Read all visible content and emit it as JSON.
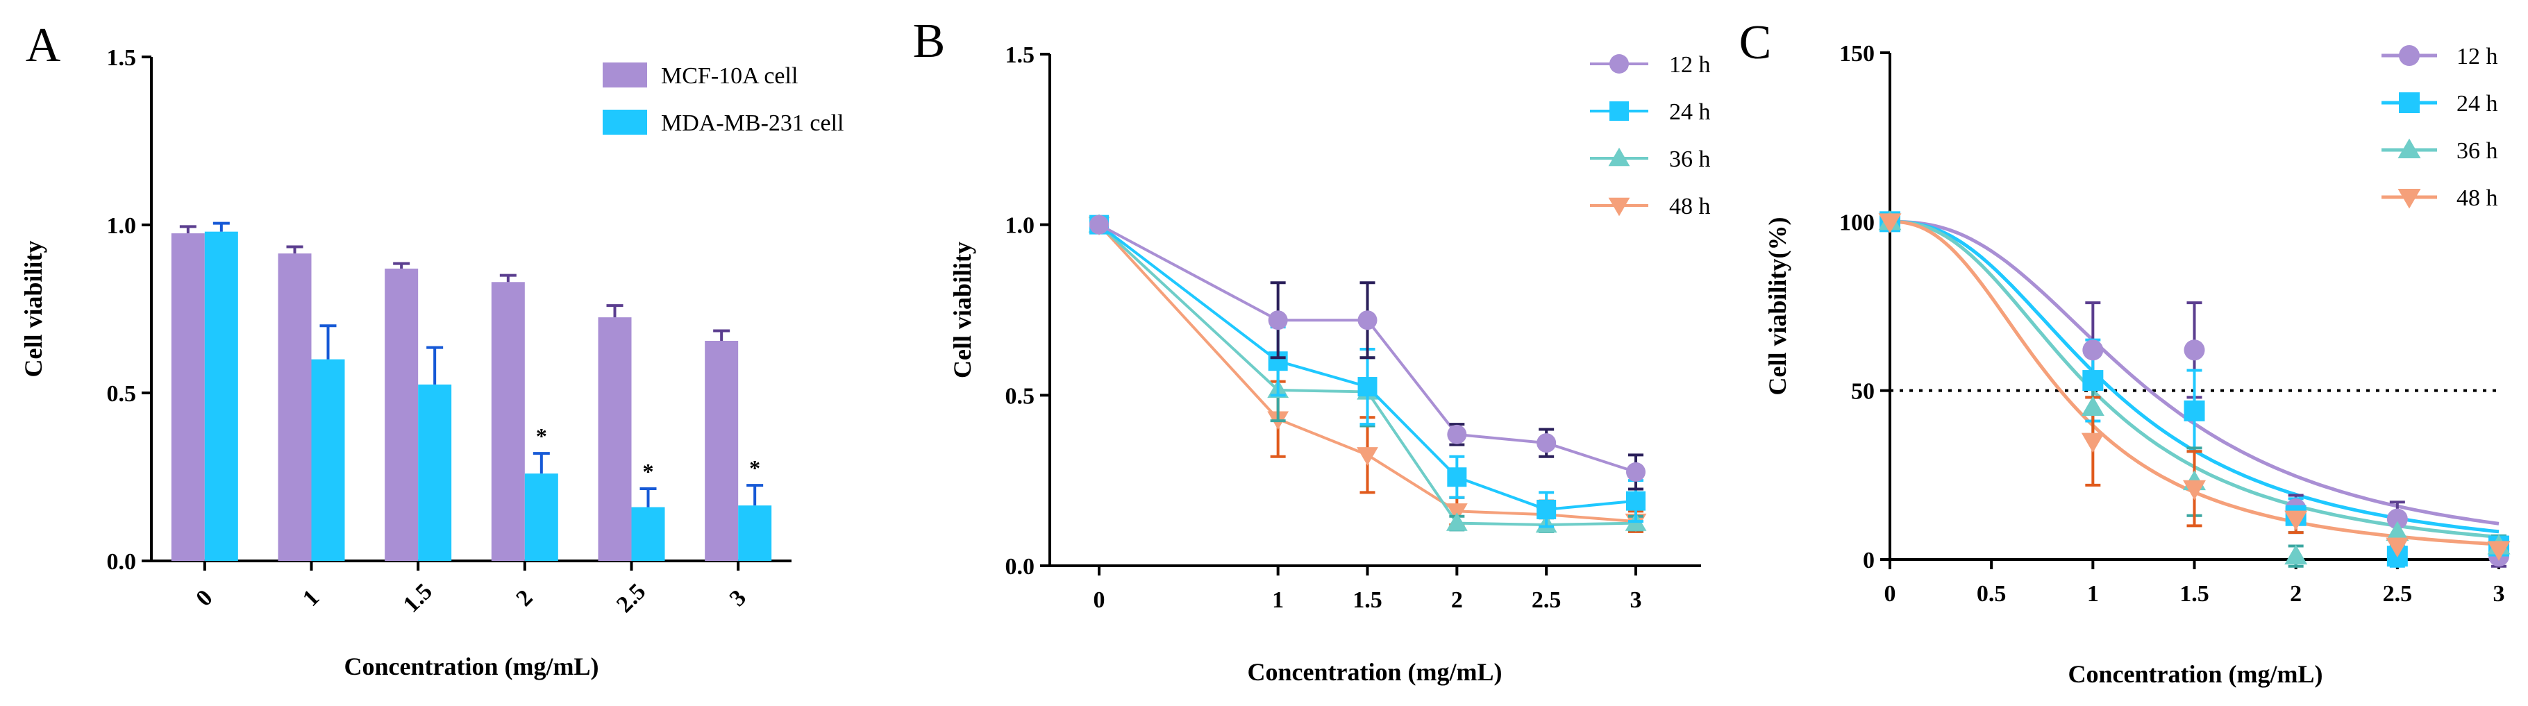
{
  "chart_data": [
    {
      "panel": "A",
      "type": "bar",
      "title": "",
      "xlabel": "Concentration (mg/mL)",
      "ylabel": "Cell viability",
      "ylim": [
        0,
        1.5
      ],
      "yticks": [
        "0.0",
        "0.5",
        "1.0",
        "1.5"
      ],
      "categories": [
        "0",
        "1",
        "1.5",
        "2",
        "2.5",
        "3"
      ],
      "series": [
        {
          "name": "MCF-10A cell",
          "color": "#a98fd4",
          "errcolor": "#5b3e8f",
          "values": [
            0.975,
            0.915,
            0.87,
            0.83,
            0.725,
            0.655
          ],
          "errors": [
            0.02,
            0.02,
            0.015,
            0.02,
            0.035,
            0.03
          ]
        },
        {
          "name": "MDA-MB-231 cell",
          "color": "#1fc8ff",
          "errcolor": "#1659d6",
          "values": [
            0.98,
            0.6,
            0.525,
            0.26,
            0.16,
            0.165
          ],
          "errors": [
            0.025,
            0.1,
            0.11,
            0.06,
            0.055,
            0.06
          ]
        }
      ],
      "annotations": [
        "*",
        "*",
        "*"
      ],
      "legend": "top-right"
    },
    {
      "panel": "B",
      "type": "line",
      "title": "",
      "xlabel": "Concentration (mg/mL)",
      "ylabel": "Cell viability",
      "ylim": [
        0,
        1.5
      ],
      "xlim": [
        0,
        3
      ],
      "yticks": [
        "0.0",
        "0.5",
        "1.0",
        "1.5"
      ],
      "xticks": [
        "0",
        "1",
        "1.5",
        "2",
        "2.5",
        "3"
      ],
      "x": [
        0,
        1,
        1.5,
        2,
        2.5,
        3
      ],
      "series": [
        {
          "name": "12 h",
          "color": "#a98fd4",
          "errcolor": "#2a1f5a",
          "marker": "circle",
          "values": [
            1.0,
            0.72,
            0.72,
            0.385,
            0.36,
            0.275
          ],
          "errors": [
            0,
            0.11,
            0.11,
            0.03,
            0.04,
            0.05
          ]
        },
        {
          "name": "24 h",
          "color": "#1fc8ff",
          "errcolor": "#1fc8ff",
          "marker": "square",
          "values": [
            1.0,
            0.6,
            0.525,
            0.26,
            0.165,
            0.19
          ],
          "errors": [
            0,
            0.1,
            0.11,
            0.06,
            0.05,
            0.06
          ]
        },
        {
          "name": "36 h",
          "color": "#6ecdc8",
          "errcolor": "#3aa6a0",
          "marker": "triangle-up",
          "values": [
            1.0,
            0.515,
            0.51,
            0.125,
            0.12,
            0.125
          ],
          "errors": [
            0,
            0.09,
            0.1,
            0.02,
            0.02,
            0.02
          ]
        },
        {
          "name": "48 h",
          "color": "#f5a07a",
          "errcolor": "#e05a1c",
          "marker": "triangle-down",
          "values": [
            1.0,
            0.43,
            0.325,
            0.16,
            0.15,
            0.13
          ],
          "errors": [
            0,
            0.11,
            0.11,
            0.04,
            0.04,
            0.03
          ]
        }
      ],
      "legend": "top-right"
    },
    {
      "panel": "C",
      "type": "scatter",
      "title": "",
      "xlabel": "Concentration (mg/mL)",
      "ylabel": "Cell viability(%)",
      "ylim": [
        0,
        150
      ],
      "xlim": [
        0,
        3
      ],
      "yticks": [
        "0",
        "50",
        "100",
        "150"
      ],
      "xticks": [
        "0",
        "0.5",
        "1",
        "1.5",
        "2",
        "2.5",
        "3"
      ],
      "x": [
        0,
        1,
        1.5,
        2,
        2.5,
        3
      ],
      "reference_line": 50,
      "series": [
        {
          "name": "12 h",
          "color": "#a98fd4",
          "errcolor": "#5b3e8f",
          "marker": "circle",
          "values": [
            100,
            62,
            62,
            15,
            12,
            1
          ],
          "errors": [
            0,
            14,
            14,
            4,
            5,
            3
          ],
          "fit": {
            "ic50": 1.28,
            "hill": 2.5
          }
        },
        {
          "name": "24 h",
          "color": "#1fc8ff",
          "errcolor": "#1fc8ff",
          "marker": "square",
          "values": [
            100,
            53,
            44,
            13,
            1,
            4
          ],
          "errors": [
            0,
            12,
            12,
            5,
            3,
            3
          ],
          "fit": {
            "ic50": 1.1,
            "hill": 2.4
          }
        },
        {
          "name": "36 h",
          "color": "#6ecdc8",
          "errcolor": "#3aa6a0",
          "marker": "triangle-up",
          "values": [
            100,
            45,
            23,
            1,
            8,
            4
          ],
          "errors": [
            0,
            8,
            10,
            3,
            3,
            3
          ],
          "fit": {
            "ic50": 1.0,
            "hill": 2.4
          }
        },
        {
          "name": "48 h",
          "color": "#f5a07a",
          "errcolor": "#e05a1c",
          "marker": "triangle-down",
          "values": [
            100,
            35,
            21,
            12,
            4,
            3
          ],
          "errors": [
            0,
            13,
            11,
            4,
            3,
            2
          ],
          "fit": {
            "ic50": 0.84,
            "hill": 2.4
          }
        }
      ],
      "legend": "top-right"
    }
  ]
}
